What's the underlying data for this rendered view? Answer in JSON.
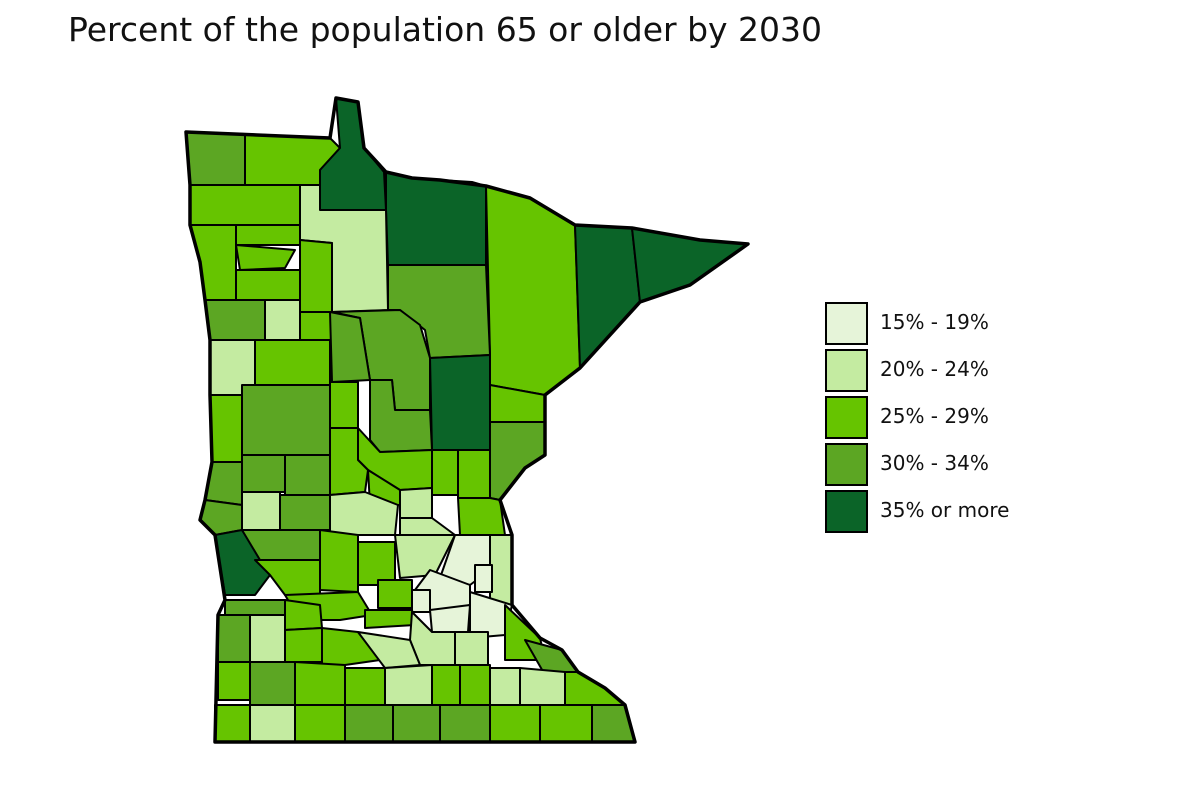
{
  "title": "Percent of the population 65 or older by 2030",
  "legend": {
    "items": [
      {
        "label": "15% - 19%",
        "color": "#e6f4d9"
      },
      {
        "label": "20% - 24%",
        "color": "#c4eba1"
      },
      {
        "label": "25% - 29%",
        "color": "#66c400"
      },
      {
        "label": "30% - 34%",
        "color": "#5ca623"
      },
      {
        "label": "35% or more",
        "color": "#0b6428"
      }
    ]
  },
  "map": {
    "region": "Minnesota",
    "unit": "county"
  }
}
